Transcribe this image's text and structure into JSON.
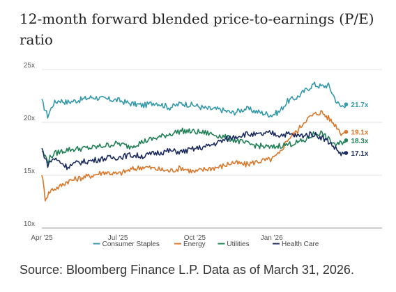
{
  "title": "12-month forward blended price-to-earnings (P/E) ratio",
  "source": "Source: Bloomberg Finance L.P. Data as of March 31, 2026.",
  "chart_data": {
    "type": "line",
    "y_ticks": [
      "25x",
      "20x",
      "15x",
      "10x"
    ],
    "y_tick_values": [
      25,
      20,
      15,
      10
    ],
    "ylim": [
      10,
      25
    ],
    "x_ticks": [
      "Apr '25",
      "Jul '25",
      "Oct '25",
      "Jan '26"
    ],
    "x_tick_values": [
      "2025-04-01",
      "2025-07-01",
      "2025-10-01",
      "2026-01-01"
    ],
    "xlim": [
      "2025-04-01",
      "2026-04-03"
    ],
    "grid": "horizontal",
    "legend_position": "bottom",
    "series": [
      {
        "name": "Consumer Staples",
        "color": "#3399aa",
        "end_label": "21.7x",
        "points": [
          [
            "2025-04-01",
            22.0
          ],
          [
            "2025-04-08",
            20.6
          ],
          [
            "2025-04-15",
            21.8
          ],
          [
            "2025-04-22",
            22.1
          ],
          [
            "2025-05-01",
            21.9
          ],
          [
            "2025-05-15",
            22.1
          ],
          [
            "2025-06-01",
            22.4
          ],
          [
            "2025-06-15",
            22.2
          ],
          [
            "2025-07-01",
            22.1
          ],
          [
            "2025-07-15",
            21.8
          ],
          [
            "2025-08-01",
            21.6
          ],
          [
            "2025-08-15",
            21.9
          ],
          [
            "2025-09-01",
            21.4
          ],
          [
            "2025-09-15",
            21.8
          ],
          [
            "2025-10-01",
            21.6
          ],
          [
            "2025-10-15",
            21.3
          ],
          [
            "2025-11-01",
            21.2
          ],
          [
            "2025-11-15",
            20.9
          ],
          [
            "2025-12-01",
            21.3
          ],
          [
            "2025-12-15",
            21.0
          ],
          [
            "2026-01-01",
            20.7
          ],
          [
            "2026-01-10",
            21.0
          ],
          [
            "2026-01-20",
            22.0
          ],
          [
            "2026-02-01",
            22.4
          ],
          [
            "2026-02-10",
            23.0
          ],
          [
            "2026-02-20",
            23.6
          ],
          [
            "2026-03-01",
            23.4
          ],
          [
            "2026-03-10",
            23.5
          ],
          [
            "2026-03-20",
            21.9
          ],
          [
            "2026-03-25",
            21.5
          ],
          [
            "2026-03-31",
            21.7
          ]
        ]
      },
      {
        "name": "Energy",
        "color": "#d9772b",
        "end_label": "19.1x",
        "points": [
          [
            "2025-04-01",
            15.2
          ],
          [
            "2025-04-05",
            12.8
          ],
          [
            "2025-04-12",
            13.6
          ],
          [
            "2025-04-22",
            13.9
          ],
          [
            "2025-05-01",
            14.4
          ],
          [
            "2025-05-15",
            14.7
          ],
          [
            "2025-06-01",
            15.0
          ],
          [
            "2025-06-15",
            15.3
          ],
          [
            "2025-07-01",
            15.1
          ],
          [
            "2025-07-15",
            15.5
          ],
          [
            "2025-08-01",
            15.8
          ],
          [
            "2025-08-15",
            15.6
          ],
          [
            "2025-09-01",
            15.4
          ],
          [
            "2025-09-15",
            15.7
          ],
          [
            "2025-10-01",
            15.3
          ],
          [
            "2025-10-15",
            15.6
          ],
          [
            "2025-11-01",
            15.8
          ],
          [
            "2025-11-15",
            16.2
          ],
          [
            "2025-12-01",
            16.0
          ],
          [
            "2025-12-15",
            16.3
          ],
          [
            "2026-01-01",
            16.5
          ],
          [
            "2026-01-10",
            17.0
          ],
          [
            "2026-01-20",
            18.4
          ],
          [
            "2026-02-01",
            19.2
          ],
          [
            "2026-02-10",
            20.2
          ],
          [
            "2026-02-20",
            20.7
          ],
          [
            "2026-03-01",
            21.0
          ],
          [
            "2026-03-10",
            20.4
          ],
          [
            "2026-03-20",
            19.6
          ],
          [
            "2026-03-25",
            19.0
          ],
          [
            "2026-03-31",
            19.1
          ]
        ]
      },
      {
        "name": "Utilities",
        "color": "#1f8055",
        "end_label": "18.3x",
        "points": [
          [
            "2025-04-01",
            17.3
          ],
          [
            "2025-04-08",
            16.4
          ],
          [
            "2025-04-15",
            17.0
          ],
          [
            "2025-04-22",
            17.2
          ],
          [
            "2025-05-01",
            17.4
          ],
          [
            "2025-05-15",
            17.5
          ],
          [
            "2025-06-01",
            17.6
          ],
          [
            "2025-06-15",
            17.8
          ],
          [
            "2025-07-01",
            18.0
          ],
          [
            "2025-07-15",
            17.7
          ],
          [
            "2025-08-01",
            18.2
          ],
          [
            "2025-08-15",
            18.5
          ],
          [
            "2025-09-01",
            18.9
          ],
          [
            "2025-09-15",
            19.2
          ],
          [
            "2025-10-01",
            19.1
          ],
          [
            "2025-10-15",
            19.0
          ],
          [
            "2025-11-01",
            18.7
          ],
          [
            "2025-11-15",
            18.4
          ],
          [
            "2025-12-01",
            18.0
          ],
          [
            "2025-12-15",
            17.8
          ],
          [
            "2026-01-01",
            17.6
          ],
          [
            "2026-01-10",
            17.8
          ],
          [
            "2026-01-20",
            17.9
          ],
          [
            "2026-02-01",
            18.1
          ],
          [
            "2026-02-10",
            18.3
          ],
          [
            "2026-02-20",
            18.9
          ],
          [
            "2026-03-01",
            19.0
          ],
          [
            "2026-03-10",
            18.4
          ],
          [
            "2026-03-20",
            17.8
          ],
          [
            "2026-03-25",
            18.1
          ],
          [
            "2026-03-31",
            18.3
          ]
        ]
      },
      {
        "name": "Health Care",
        "color": "#1a2a5e",
        "end_label": "17.1x",
        "points": [
          [
            "2025-04-01",
            17.5
          ],
          [
            "2025-04-08",
            16.0
          ],
          [
            "2025-04-15",
            16.6
          ],
          [
            "2025-04-22",
            16.3
          ],
          [
            "2025-05-01",
            15.8
          ],
          [
            "2025-05-15",
            16.2
          ],
          [
            "2025-06-01",
            16.4
          ],
          [
            "2025-06-15",
            16.6
          ],
          [
            "2025-07-01",
            16.7
          ],
          [
            "2025-07-15",
            16.9
          ],
          [
            "2025-08-01",
            16.8
          ],
          [
            "2025-08-15",
            17.1
          ],
          [
            "2025-09-01",
            17.3
          ],
          [
            "2025-09-15",
            17.2
          ],
          [
            "2025-10-01",
            17.5
          ],
          [
            "2025-10-15",
            17.7
          ],
          [
            "2025-11-01",
            18.2
          ],
          [
            "2025-11-15",
            18.6
          ],
          [
            "2025-12-01",
            18.9
          ],
          [
            "2025-12-15",
            18.8
          ],
          [
            "2026-01-01",
            19.0
          ],
          [
            "2026-01-10",
            18.8
          ],
          [
            "2026-01-20",
            18.9
          ],
          [
            "2026-02-01",
            18.7
          ],
          [
            "2026-02-10",
            18.8
          ],
          [
            "2026-02-20",
            18.9
          ],
          [
            "2026-03-01",
            18.6
          ],
          [
            "2026-03-10",
            18.2
          ],
          [
            "2026-03-20",
            17.4
          ],
          [
            "2026-03-25",
            17.0
          ],
          [
            "2026-03-31",
            17.1
          ]
        ]
      }
    ]
  }
}
